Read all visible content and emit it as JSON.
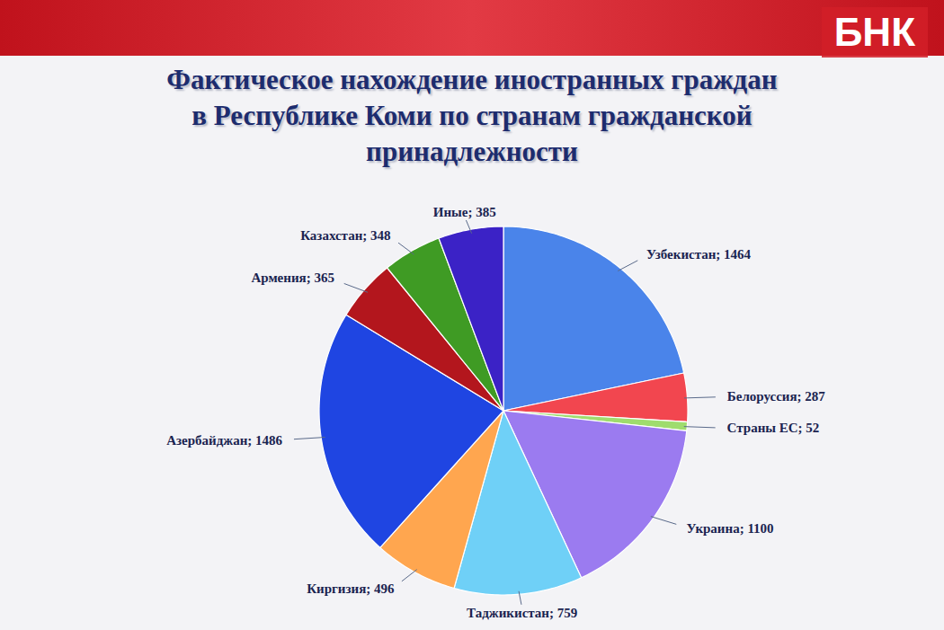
{
  "chart_data": {
    "type": "pie",
    "title": "Фактическое нахождение иностранных граждан в Республике Коми по странам гражданской принадлежности",
    "categories": [
      "Узбекистан",
      "Белоруссия",
      "Страны ЕС",
      "Украина",
      "Таджикистан",
      "Киргизия",
      "Азербайджан",
      "Армения",
      "Казахстан",
      "Иные"
    ],
    "values": [
      1464,
      287,
      52,
      1100,
      759,
      496,
      1486,
      365,
      348,
      385
    ],
    "value_labels": [
      "Узбекистан; 1464",
      "Белоруссия; 287",
      "Страны ЕС; 52",
      "Украина; 1100",
      "Таджикистан; 759",
      "Киргизия; 496",
      "Азербайджан; 1486",
      "Армения; 365",
      "Казахстан; 348",
      "Иные; 385"
    ],
    "colors": [
      "#4a84ea",
      "#f2464f",
      "#9fdc6e",
      "#9b7bf0",
      "#6fd0f7",
      "#ffa64f",
      "#1f45e2",
      "#b3161d",
      "#3f9b24",
      "#3b22c6"
    ],
    "data_labels": true,
    "annotations": [
      {
        "text": "БНК"
      }
    ]
  }
}
